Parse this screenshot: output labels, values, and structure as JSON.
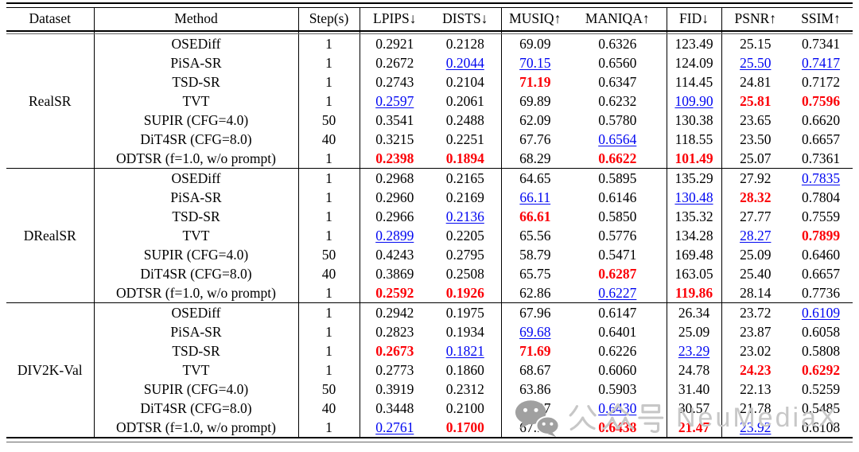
{
  "colors": {
    "text": "#000000",
    "best": "#fb0007",
    "second": "#0006f1",
    "rule": "#000000",
    "watermark_icon": "#a0a0a0",
    "watermark_text": "#c7c7c7"
  },
  "watermark": {
    "icon": "wechat-icon",
    "text_cn": "公众号",
    "text_en": "NeuMediaX"
  },
  "chart_data": {
    "type": "table",
    "columns": [
      "Dataset",
      "Method",
      "Step(s)",
      "LPIPS↓",
      "DISTS↓",
      "MUSIQ↑",
      "MANIQA↑",
      "FID↓",
      "PSNR↑",
      "SSIM↑"
    ],
    "style_legend": {
      "r": "best (red bold)",
      "b": "second best (blue underlined)",
      "n": "normal"
    },
    "groups": [
      {
        "dataset": "RealSR",
        "rows": [
          {
            "method": "OSEDiff",
            "steps": "1",
            "cells": [
              [
                "0.2921",
                "n"
              ],
              [
                "0.2128",
                "n"
              ],
              [
                "69.09",
                "n"
              ],
              [
                "0.6326",
                "n"
              ],
              [
                "123.49",
                "n"
              ],
              [
                "25.15",
                "n"
              ],
              [
                "0.7341",
                "n"
              ]
            ]
          },
          {
            "method": "PiSA-SR",
            "steps": "1",
            "cells": [
              [
                "0.2672",
                "n"
              ],
              [
                "0.2044",
                "b"
              ],
              [
                "70.15",
                "b"
              ],
              [
                "0.6560",
                "n"
              ],
              [
                "124.09",
                "n"
              ],
              [
                "25.50",
                "b"
              ],
              [
                "0.7417",
                "b"
              ]
            ]
          },
          {
            "method": "TSD-SR",
            "steps": "1",
            "cells": [
              [
                "0.2743",
                "n"
              ],
              [
                "0.2104",
                "n"
              ],
              [
                "71.19",
                "r"
              ],
              [
                "0.6347",
                "n"
              ],
              [
                "114.45",
                "n"
              ],
              [
                "24.81",
                "n"
              ],
              [
                "0.7172",
                "n"
              ]
            ]
          },
          {
            "method": "TVT",
            "steps": "1",
            "cells": [
              [
                "0.2597",
                "b"
              ],
              [
                "0.2061",
                "n"
              ],
              [
                "69.89",
                "n"
              ],
              [
                "0.6232",
                "n"
              ],
              [
                "109.90",
                "b"
              ],
              [
                "25.81",
                "r"
              ],
              [
                "0.7596",
                "r"
              ]
            ]
          },
          {
            "method": "SUPIR (CFG=4.0)",
            "steps": "50",
            "cells": [
              [
                "0.3541",
                "n"
              ],
              [
                "0.2488",
                "n"
              ],
              [
                "62.09",
                "n"
              ],
              [
                "0.5780",
                "n"
              ],
              [
                "130.38",
                "n"
              ],
              [
                "23.65",
                "n"
              ],
              [
                "0.6620",
                "n"
              ]
            ]
          },
          {
            "method": "DiT4SR (CFG=8.0)",
            "steps": "40",
            "cells": [
              [
                "0.3215",
                "n"
              ],
              [
                "0.2251",
                "n"
              ],
              [
                "67.76",
                "n"
              ],
              [
                "0.6564",
                "b"
              ],
              [
                "118.55",
                "n"
              ],
              [
                "23.50",
                "n"
              ],
              [
                "0.6657",
                "n"
              ]
            ]
          },
          {
            "method": "ODTSR (f=1.0, w/o prompt)",
            "steps": "1",
            "cells": [
              [
                "0.2398",
                "r"
              ],
              [
                "0.1894",
                "r"
              ],
              [
                "68.29",
                "n"
              ],
              [
                "0.6622",
                "r"
              ],
              [
                "101.49",
                "r"
              ],
              [
                "25.07",
                "n"
              ],
              [
                "0.7361",
                "n"
              ]
            ]
          }
        ]
      },
      {
        "dataset": "DRealSR",
        "rows": [
          {
            "method": "OSEDiff",
            "steps": "1",
            "cells": [
              [
                "0.2968",
                "n"
              ],
              [
                "0.2165",
                "n"
              ],
              [
                "64.65",
                "n"
              ],
              [
                "0.5895",
                "n"
              ],
              [
                "135.29",
                "n"
              ],
              [
                "27.92",
                "n"
              ],
              [
                "0.7835",
                "b"
              ]
            ]
          },
          {
            "method": "PiSA-SR",
            "steps": "1",
            "cells": [
              [
                "0.2960",
                "n"
              ],
              [
                "0.2169",
                "n"
              ],
              [
                "66.11",
                "b"
              ],
              [
                "0.6146",
                "n"
              ],
              [
                "130.48",
                "b"
              ],
              [
                "28.32",
                "r"
              ],
              [
                "0.7804",
                "n"
              ]
            ]
          },
          {
            "method": "TSD-SR",
            "steps": "1",
            "cells": [
              [
                "0.2966",
                "n"
              ],
              [
                "0.2136",
                "b"
              ],
              [
                "66.61",
                "r"
              ],
              [
                "0.5850",
                "n"
              ],
              [
                "135.32",
                "n"
              ],
              [
                "27.77",
                "n"
              ],
              [
                "0.7559",
                "n"
              ]
            ]
          },
          {
            "method": "TVT",
            "steps": "1",
            "cells": [
              [
                "0.2899",
                "b"
              ],
              [
                "0.2205",
                "n"
              ],
              [
                "65.56",
                "n"
              ],
              [
                "0.5776",
                "n"
              ],
              [
                "134.28",
                "n"
              ],
              [
                "28.27",
                "b"
              ],
              [
                "0.7899",
                "r"
              ]
            ]
          },
          {
            "method": "SUPIR (CFG=4.0)",
            "steps": "50",
            "cells": [
              [
                "0.4243",
                "n"
              ],
              [
                "0.2795",
                "n"
              ],
              [
                "58.79",
                "n"
              ],
              [
                "0.5471",
                "n"
              ],
              [
                "169.48",
                "n"
              ],
              [
                "25.09",
                "n"
              ],
              [
                "0.6460",
                "n"
              ]
            ]
          },
          {
            "method": "DiT4SR (CFG=8.0)",
            "steps": "40",
            "cells": [
              [
                "0.3869",
                "n"
              ],
              [
                "0.2508",
                "n"
              ],
              [
                "65.75",
                "n"
              ],
              [
                "0.6287",
                "r"
              ],
              [
                "163.05",
                "n"
              ],
              [
                "25.40",
                "n"
              ],
              [
                "0.6657",
                "n"
              ]
            ]
          },
          {
            "method": "ODTSR (f=1.0, w/o prompt)",
            "steps": "1",
            "cells": [
              [
                "0.2592",
                "r"
              ],
              [
                "0.1926",
                "r"
              ],
              [
                "62.86",
                "n"
              ],
              [
                "0.6227",
                "b"
              ],
              [
                "119.86",
                "r"
              ],
              [
                "28.14",
                "n"
              ],
              [
                "0.7736",
                "n"
              ]
            ]
          }
        ]
      },
      {
        "dataset": "DIV2K-Val",
        "rows": [
          {
            "method": "OSEDiff",
            "steps": "1",
            "cells": [
              [
                "0.2942",
                "n"
              ],
              [
                "0.1975",
                "n"
              ],
              [
                "67.96",
                "n"
              ],
              [
                "0.6147",
                "n"
              ],
              [
                "26.34",
                "n"
              ],
              [
                "23.72",
                "n"
              ],
              [
                "0.6109",
                "b"
              ]
            ]
          },
          {
            "method": "PiSA-SR",
            "steps": "1",
            "cells": [
              [
                "0.2823",
                "n"
              ],
              [
                "0.1934",
                "n"
              ],
              [
                "69.68",
                "b"
              ],
              [
                "0.6401",
                "n"
              ],
              [
                "25.09",
                "n"
              ],
              [
                "23.87",
                "n"
              ],
              [
                "0.6058",
                "n"
              ]
            ]
          },
          {
            "method": "TSD-SR",
            "steps": "1",
            "cells": [
              [
                "0.2673",
                "r"
              ],
              [
                "0.1821",
                "b"
              ],
              [
                "71.69",
                "r"
              ],
              [
                "0.6226",
                "n"
              ],
              [
                "23.29",
                "b"
              ],
              [
                "23.02",
                "n"
              ],
              [
                "0.5808",
                "n"
              ]
            ]
          },
          {
            "method": "TVT",
            "steps": "1",
            "cells": [
              [
                "0.2773",
                "n"
              ],
              [
                "0.1860",
                "n"
              ],
              [
                "68.67",
                "n"
              ],
              [
                "0.6060",
                "n"
              ],
              [
                "24.78",
                "n"
              ],
              [
                "24.23",
                "r"
              ],
              [
                "0.6292",
                "r"
              ]
            ]
          },
          {
            "method": "SUPIR (CFG=4.0)",
            "steps": "50",
            "cells": [
              [
                "0.3919",
                "n"
              ],
              [
                "0.2312",
                "n"
              ],
              [
                "63.86",
                "n"
              ],
              [
                "0.5903",
                "n"
              ],
              [
                "31.40",
                "n"
              ],
              [
                "22.13",
                "n"
              ],
              [
                "0.5259",
                "n"
              ]
            ]
          },
          {
            "method": "DiT4SR (CFG=8.0)",
            "steps": "40",
            "cells": [
              [
                "0.3448",
                "n"
              ],
              [
                "0.2100",
                "n"
              ],
              [
                "68.07",
                "n"
              ],
              [
                "0.6430",
                "b"
              ],
              [
                "30.57",
                "n"
              ],
              [
                "21.78",
                "n"
              ],
              [
                "0.5485",
                "n"
              ]
            ]
          },
          {
            "method": "ODTSR (f=1.0, w/o prompt)",
            "steps": "1",
            "cells": [
              [
                "0.2761",
                "b"
              ],
              [
                "0.1700",
                "r"
              ],
              [
                "67.94",
                "n"
              ],
              [
                "0.6438",
                "r"
              ],
              [
                "21.47",
                "r"
              ],
              [
                "23.92",
                "b"
              ],
              [
                "0.6108",
                "n"
              ]
            ]
          }
        ]
      }
    ]
  }
}
